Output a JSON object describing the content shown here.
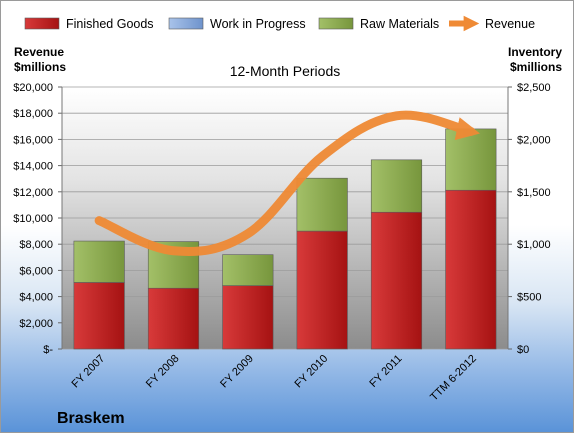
{
  "chart_data": {
    "type": "bar",
    "stacked": true,
    "title": "12-Month Periods",
    "company": "Braskem",
    "categories": [
      "FY 2007",
      "FY 2008",
      "FY 2009",
      "FY 2010",
      "FY 2011",
      "TTM 6-2012"
    ],
    "series": [
      {
        "name": "Finished Goods",
        "axis": "right",
        "color": "#c0191a",
        "values": [
          635,
          580,
          605,
          1125,
          1305,
          1515
        ]
      },
      {
        "name": "Work in Progress",
        "axis": "right",
        "color": "#7a9fd6",
        "values": [
          0,
          0,
          0,
          0,
          0,
          0
        ]
      },
      {
        "name": "Raw Materials",
        "axis": "right",
        "color": "#8fae52",
        "values": [
          395,
          445,
          295,
          505,
          500,
          585
        ]
      },
      {
        "name": "Revenue",
        "axis": "left",
        "type": "line",
        "color": "#ef8a35",
        "values": [
          9800,
          7500,
          8800,
          14700,
          17800,
          16600
        ]
      }
    ],
    "y_left": {
      "label": "Revenue\n$millions",
      "lim": [
        0,
        20000
      ],
      "ticks": [
        0,
        2000,
        4000,
        6000,
        8000,
        10000,
        12000,
        14000,
        16000,
        18000,
        20000
      ],
      "tick_labels": [
        "$-",
        "$2,000",
        "$4,000",
        "$6,000",
        "$8,000",
        "$10,000",
        "$12,000",
        "$14,000",
        "$16,000",
        "$18,000",
        "$20,000"
      ]
    },
    "y_right": {
      "label": "Inventory\n$millions",
      "lim": [
        0,
        2500
      ],
      "ticks": [
        0,
        500,
        1000,
        1500,
        2000,
        2500
      ],
      "tick_labels": [
        "$0",
        "$500",
        "$1,000",
        "$1,500",
        "$2,000",
        "$2,500"
      ]
    },
    "legend": [
      "Finished Goods",
      "Work in Progress",
      "Raw Materials",
      "Revenue"
    ],
    "legend_position": "top",
    "grid": true
  }
}
